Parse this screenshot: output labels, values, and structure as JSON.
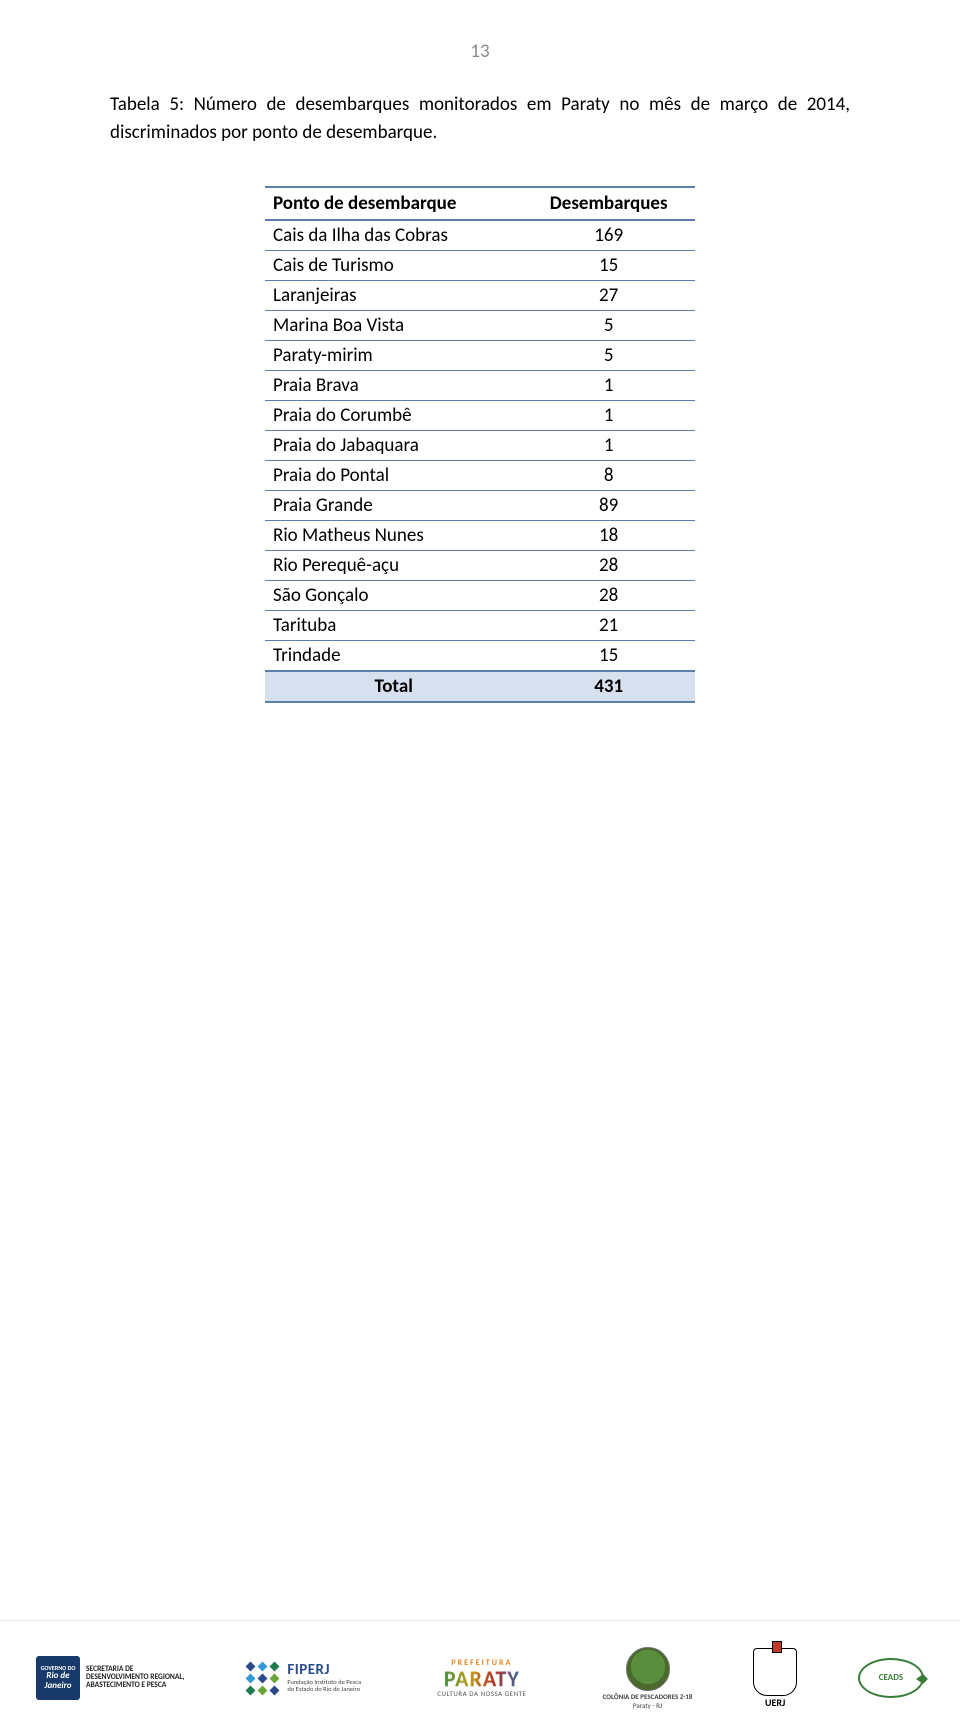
{
  "page_number": "13",
  "caption_full": "Tabela 5: Número de desembarques monitorados em Paraty no mês de março de 2014, discriminados por ponto de desembarque.",
  "table": {
    "type": "table",
    "background_color": "#ffffff",
    "border_color": "#5b7fa8",
    "header_bg": "#ffffff",
    "total_row_bg": "#d6e0ee",
    "font_size_pt": 11,
    "columns": [
      {
        "label": "Ponto de desembarque",
        "align": "left"
      },
      {
        "label": "Desembarques",
        "align": "center"
      }
    ],
    "rows": [
      {
        "name": "Cais da Ilha das Cobras",
        "value": "169"
      },
      {
        "name": "Cais de Turismo",
        "value": "15"
      },
      {
        "name": "Laranjeiras",
        "value": "27"
      },
      {
        "name": "Marina Boa Vista",
        "value": "5"
      },
      {
        "name": "Paraty-mirim",
        "value": "5"
      },
      {
        "name": "Praia Brava",
        "value": "1"
      },
      {
        "name": "Praia do Corumbê",
        "value": "1"
      },
      {
        "name": "Praia do Jabaquara",
        "value": "1"
      },
      {
        "name": "Praia do Pontal",
        "value": "8"
      },
      {
        "name": "Praia Grande",
        "value": "89"
      },
      {
        "name": "Rio Matheus Nunes",
        "value": "18"
      },
      {
        "name": "Rio Perequê-açu",
        "value": "28"
      },
      {
        "name": "São Gonçalo",
        "value": "28"
      },
      {
        "name": "Tarituba",
        "value": "21"
      },
      {
        "name": "Trindade",
        "value": "15"
      }
    ],
    "total": {
      "label": "Total",
      "value": "431"
    }
  },
  "footer": {
    "rio": {
      "line1": "GOVERNO DO",
      "line2": "Rio de",
      "line3": "Janeiro",
      "dept": "SECRETARIA DE\nDESENVOLVIMENTO REGIONAL,\nABASTECIMENTO E PESCA"
    },
    "fiperj": {
      "title": "FIPERJ",
      "sub": "Fundação Instituto de Pesca\ndo Estado do Rio de Janeiro"
    },
    "paraty": {
      "pref": "PREFEITURA",
      "name": "PARATY",
      "sub": "CULTURA DA NOSSA GENTE"
    },
    "colonia": {
      "label": "COLÔNIA DE PESCADORES Z-18",
      "sub": "Paraty - RJ"
    },
    "uerj": {
      "label": "UERJ"
    },
    "ceads": {
      "label": "CEADS"
    }
  }
}
